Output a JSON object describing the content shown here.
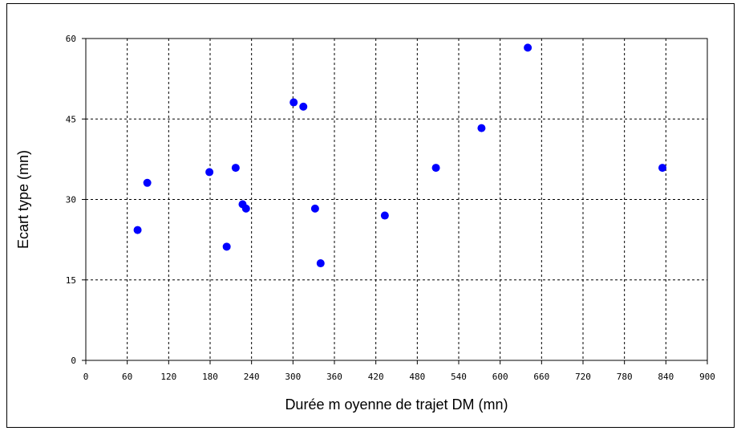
{
  "chart_data": {
    "type": "scatter",
    "title": "",
    "xlabel": "Durée m oyenne de trajet DM (mn)",
    "ylabel": "Ecart type (mn)",
    "xlim": [
      0,
      900
    ],
    "ylim": [
      0,
      60
    ],
    "xticks": [
      "0",
      "60",
      "120",
      "180",
      "240",
      "300",
      "360",
      "420",
      "480",
      "540",
      "600",
      "660",
      "720",
      "780",
      "840",
      "900"
    ],
    "yticks": [
      "0",
      "15",
      "30",
      "45",
      "60"
    ],
    "grid": true,
    "legend": "none",
    "point_color": "#0000ff",
    "series": [
      {
        "points": [
          {
            "x": 75,
            "y": 24.3
          },
          {
            "x": 89,
            "y": 33.1
          },
          {
            "x": 179,
            "y": 35.1
          },
          {
            "x": 204,
            "y": 21.2
          },
          {
            "x": 217,
            "y": 35.9
          },
          {
            "x": 227,
            "y": 29.1
          },
          {
            "x": 232,
            "y": 28.3
          },
          {
            "x": 301,
            "y": 48.1
          },
          {
            "x": 315,
            "y": 47.3
          },
          {
            "x": 332,
            "y": 28.3
          },
          {
            "x": 340,
            "y": 18.1
          },
          {
            "x": 433,
            "y": 27.0
          },
          {
            "x": 507,
            "y": 35.9
          },
          {
            "x": 573,
            "y": 43.3
          },
          {
            "x": 640,
            "y": 58.3
          },
          {
            "x": 835,
            "y": 35.9
          }
        ]
      }
    ]
  }
}
